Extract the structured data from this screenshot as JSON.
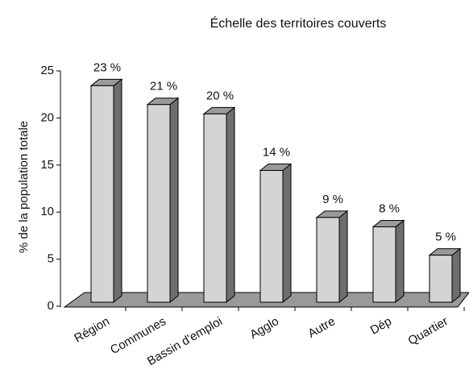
{
  "chart_data": {
    "type": "bar3d",
    "title": "Échelle des territoires couverts",
    "y_label": "% de la population totale",
    "categories": [
      "Région",
      "Communes",
      "Bassin d'emploi",
      "Agglo",
      "Autre",
      "Dép",
      "Quartier"
    ],
    "values": [
      23,
      21,
      20,
      14,
      9,
      8,
      5
    ],
    "value_labels": [
      "23 %",
      "21 %",
      "20 %",
      "14 %",
      "9 %",
      "8 %",
      "5 %"
    ],
    "color": "#d4d4d4",
    "ylim": [
      0,
      25
    ],
    "yticks": [
      0,
      5,
      10,
      15,
      20,
      25
    ]
  }
}
